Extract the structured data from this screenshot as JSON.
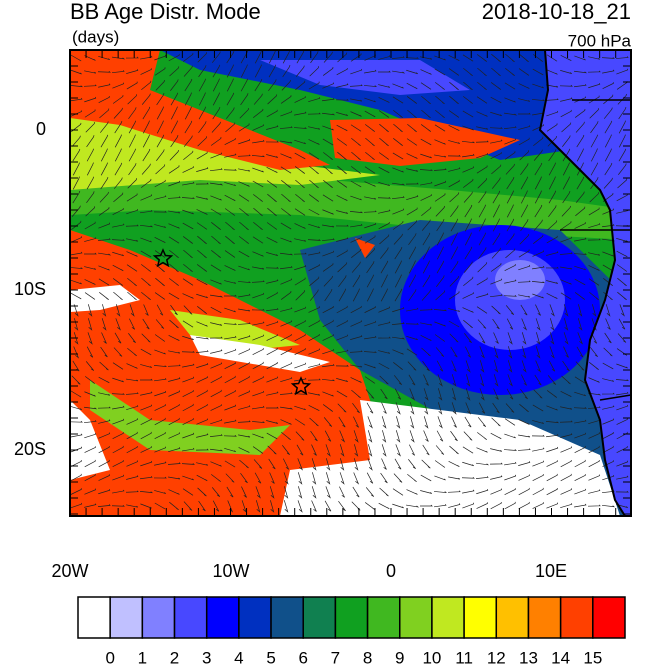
{
  "header": {
    "title": "BB Age Distr. Mode",
    "units": "(days)",
    "timestamp": "2018-10-18_21",
    "level": "700 hPa"
  },
  "map": {
    "longitude_labels": [
      "20W",
      "10W",
      "0",
      "10E"
    ],
    "latitude_labels": [
      "0",
      "10S",
      "20S"
    ]
  },
  "colorbar": {
    "labels": [
      0,
      1,
      2,
      3,
      4,
      5,
      6,
      7,
      8,
      9,
      10,
      11,
      12,
      13,
      14,
      15
    ],
    "colors": [
      "#ffffff",
      "#c0c0ff",
      "#8080ff",
      "#4848ff",
      "#0000ff",
      "#0030c0",
      "#10508a",
      "#108050",
      "#10a020",
      "#40b820",
      "#80d020",
      "#c0e820",
      "#ffff00",
      "#ffc000",
      "#ff8000",
      "#ff4000",
      "#ff0000"
    ]
  }
}
